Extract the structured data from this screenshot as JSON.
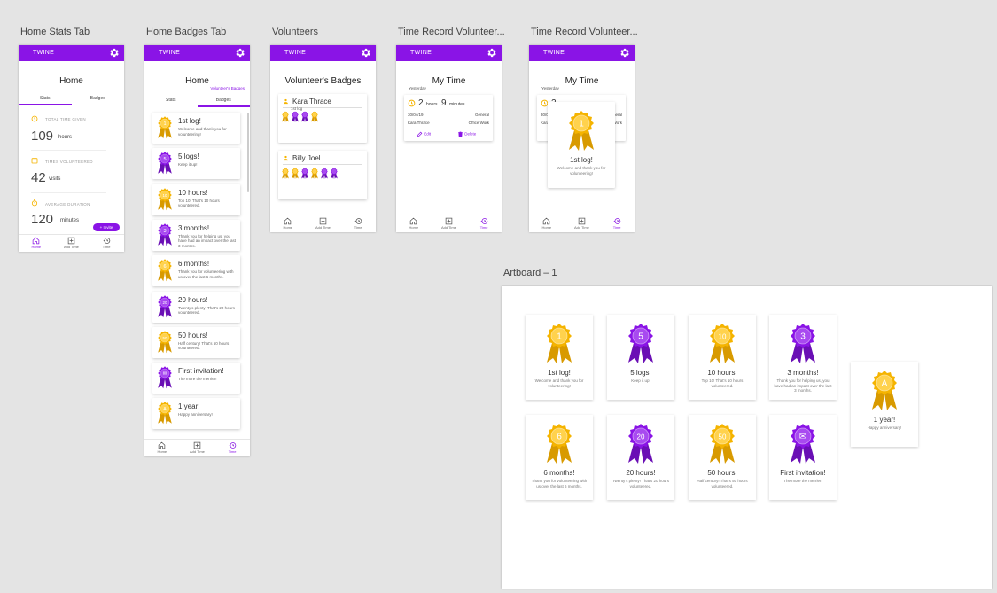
{
  "artboards": {
    "home_stats": "Home Stats Tab",
    "home_badges": "Home Badges Tab",
    "volunteers": "Volunteers",
    "time_record_1": "Time Record Volunteer...",
    "time_record_2": "Time Record Volunteer...",
    "artboard1": "Artboard – 1"
  },
  "app": {
    "brand": "TWINE",
    "accent": "#8a14e6",
    "gold": "#f5b400"
  },
  "nav": {
    "home": "Home",
    "add_time": "Add Time",
    "time": "Time"
  },
  "home": {
    "title": "Home",
    "tab_stats": "Stats",
    "tab_badges": "Badges",
    "volunteers_badges_link": "Volunteer's Badges",
    "stats": [
      {
        "label": "TOTAL TIME GIVEN",
        "value": "109",
        "unit": "hours"
      },
      {
        "label": "TIMES VOLUNTEERED",
        "value": "42",
        "unit": "visits"
      },
      {
        "label": "AVERAGE DURATION",
        "value": "120",
        "unit": "minutes"
      }
    ],
    "invite_button": "+ Invite"
  },
  "badges": [
    {
      "num": "1",
      "title": "1st log!",
      "desc": "Welcome and thank you for volunteering!",
      "color": "gold"
    },
    {
      "num": "5",
      "title": "5 logs!",
      "desc": "Keep it up!",
      "color": "purple"
    },
    {
      "num": "10",
      "title": "10 hours!",
      "desc": "Top 10! That's 10 hours volunteered.",
      "color": "gold"
    },
    {
      "num": "3",
      "title": "3 months!",
      "desc": "Thank you for helping us, you have had an impact over the last 3 months.",
      "color": "purple"
    },
    {
      "num": "6",
      "title": "6 months!",
      "desc": "Thank you for volunteering with us over the last 6 months.",
      "color": "gold"
    },
    {
      "num": "20",
      "title": "20 hours!",
      "desc": "Twenty's plenty! That's 20 hours volunteered.",
      "color": "purple"
    },
    {
      "num": "50",
      "title": "50 hours!",
      "desc": "Half century! That's 50 hours volunteered.",
      "color": "gold"
    },
    {
      "num": "✉",
      "title": "First invitation!",
      "desc": "The more the merrier!",
      "color": "purple"
    },
    {
      "num": "A",
      "title": "1 year!",
      "desc": "Happy anniversary!",
      "color": "gold"
    }
  ],
  "volunteers": {
    "title": "Volunteer's Badges",
    "people": [
      {
        "name": "Kara Thrace",
        "sub": "1st log",
        "medals": [
          "gold",
          "purple",
          "purple",
          "gold"
        ]
      },
      {
        "name": "Billy Joel",
        "sub": "",
        "medals": [
          "gold",
          "gold",
          "purple",
          "gold",
          "purple",
          "purple"
        ]
      }
    ]
  },
  "time": {
    "title": "My Time",
    "yesterday": "Yesterday",
    "hours": "2",
    "hours_unit": "hours",
    "minutes": "9",
    "minutes_unit": "minutes",
    "date": "30/04/19",
    "category": "General",
    "person": "Kara Thrace",
    "activity": "Office Work",
    "edit": "Edit",
    "delete": "Delete",
    "popup_title": "1st log!",
    "popup_desc": "Welcome and thank you for volunteering!",
    "popup_num": "1"
  }
}
